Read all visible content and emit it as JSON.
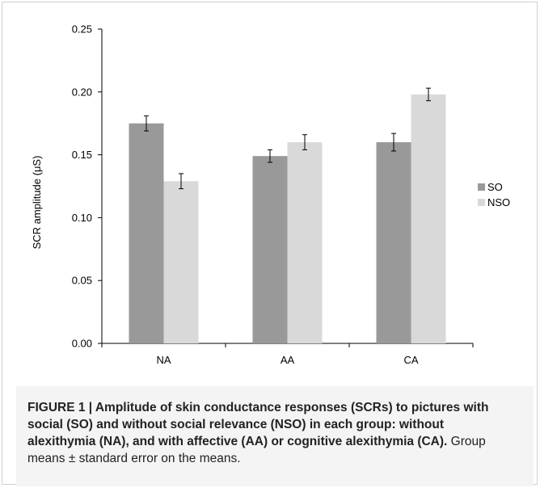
{
  "chart_data": {
    "type": "bar",
    "title": "",
    "xlabel": "",
    "ylabel": "SCR  amplitude (μS)",
    "ylim": [
      0,
      0.25
    ],
    "yticks": [
      "0.00",
      "0.05",
      "0.10",
      "0.15",
      "0.20",
      "0.25"
    ],
    "ytick_values": [
      0,
      0.05,
      0.1,
      0.15,
      0.2,
      0.25
    ],
    "categories": [
      "NA",
      "AA",
      "CA"
    ],
    "series": [
      {
        "name": "SO",
        "color": "#999999",
        "values": [
          0.175,
          0.149,
          0.16
        ],
        "errors": [
          0.006,
          0.005,
          0.007
        ]
      },
      {
        "name": "NSO",
        "color": "#d9d9d9",
        "values": [
          0.129,
          0.16,
          0.198
        ],
        "errors": [
          0.006,
          0.006,
          0.005
        ]
      }
    ],
    "grid": false,
    "legend_position": "right"
  },
  "caption": {
    "label": "FIGURE 1 | Amplitude of skin conductance responses (SCRs) to pictures with social (SO) and without social relevance (NSO) in each group: without alexithymia (NA), and with affective (AA) or cognitive alexithymia (CA).",
    "note": "Group means ± standard error on the means."
  }
}
